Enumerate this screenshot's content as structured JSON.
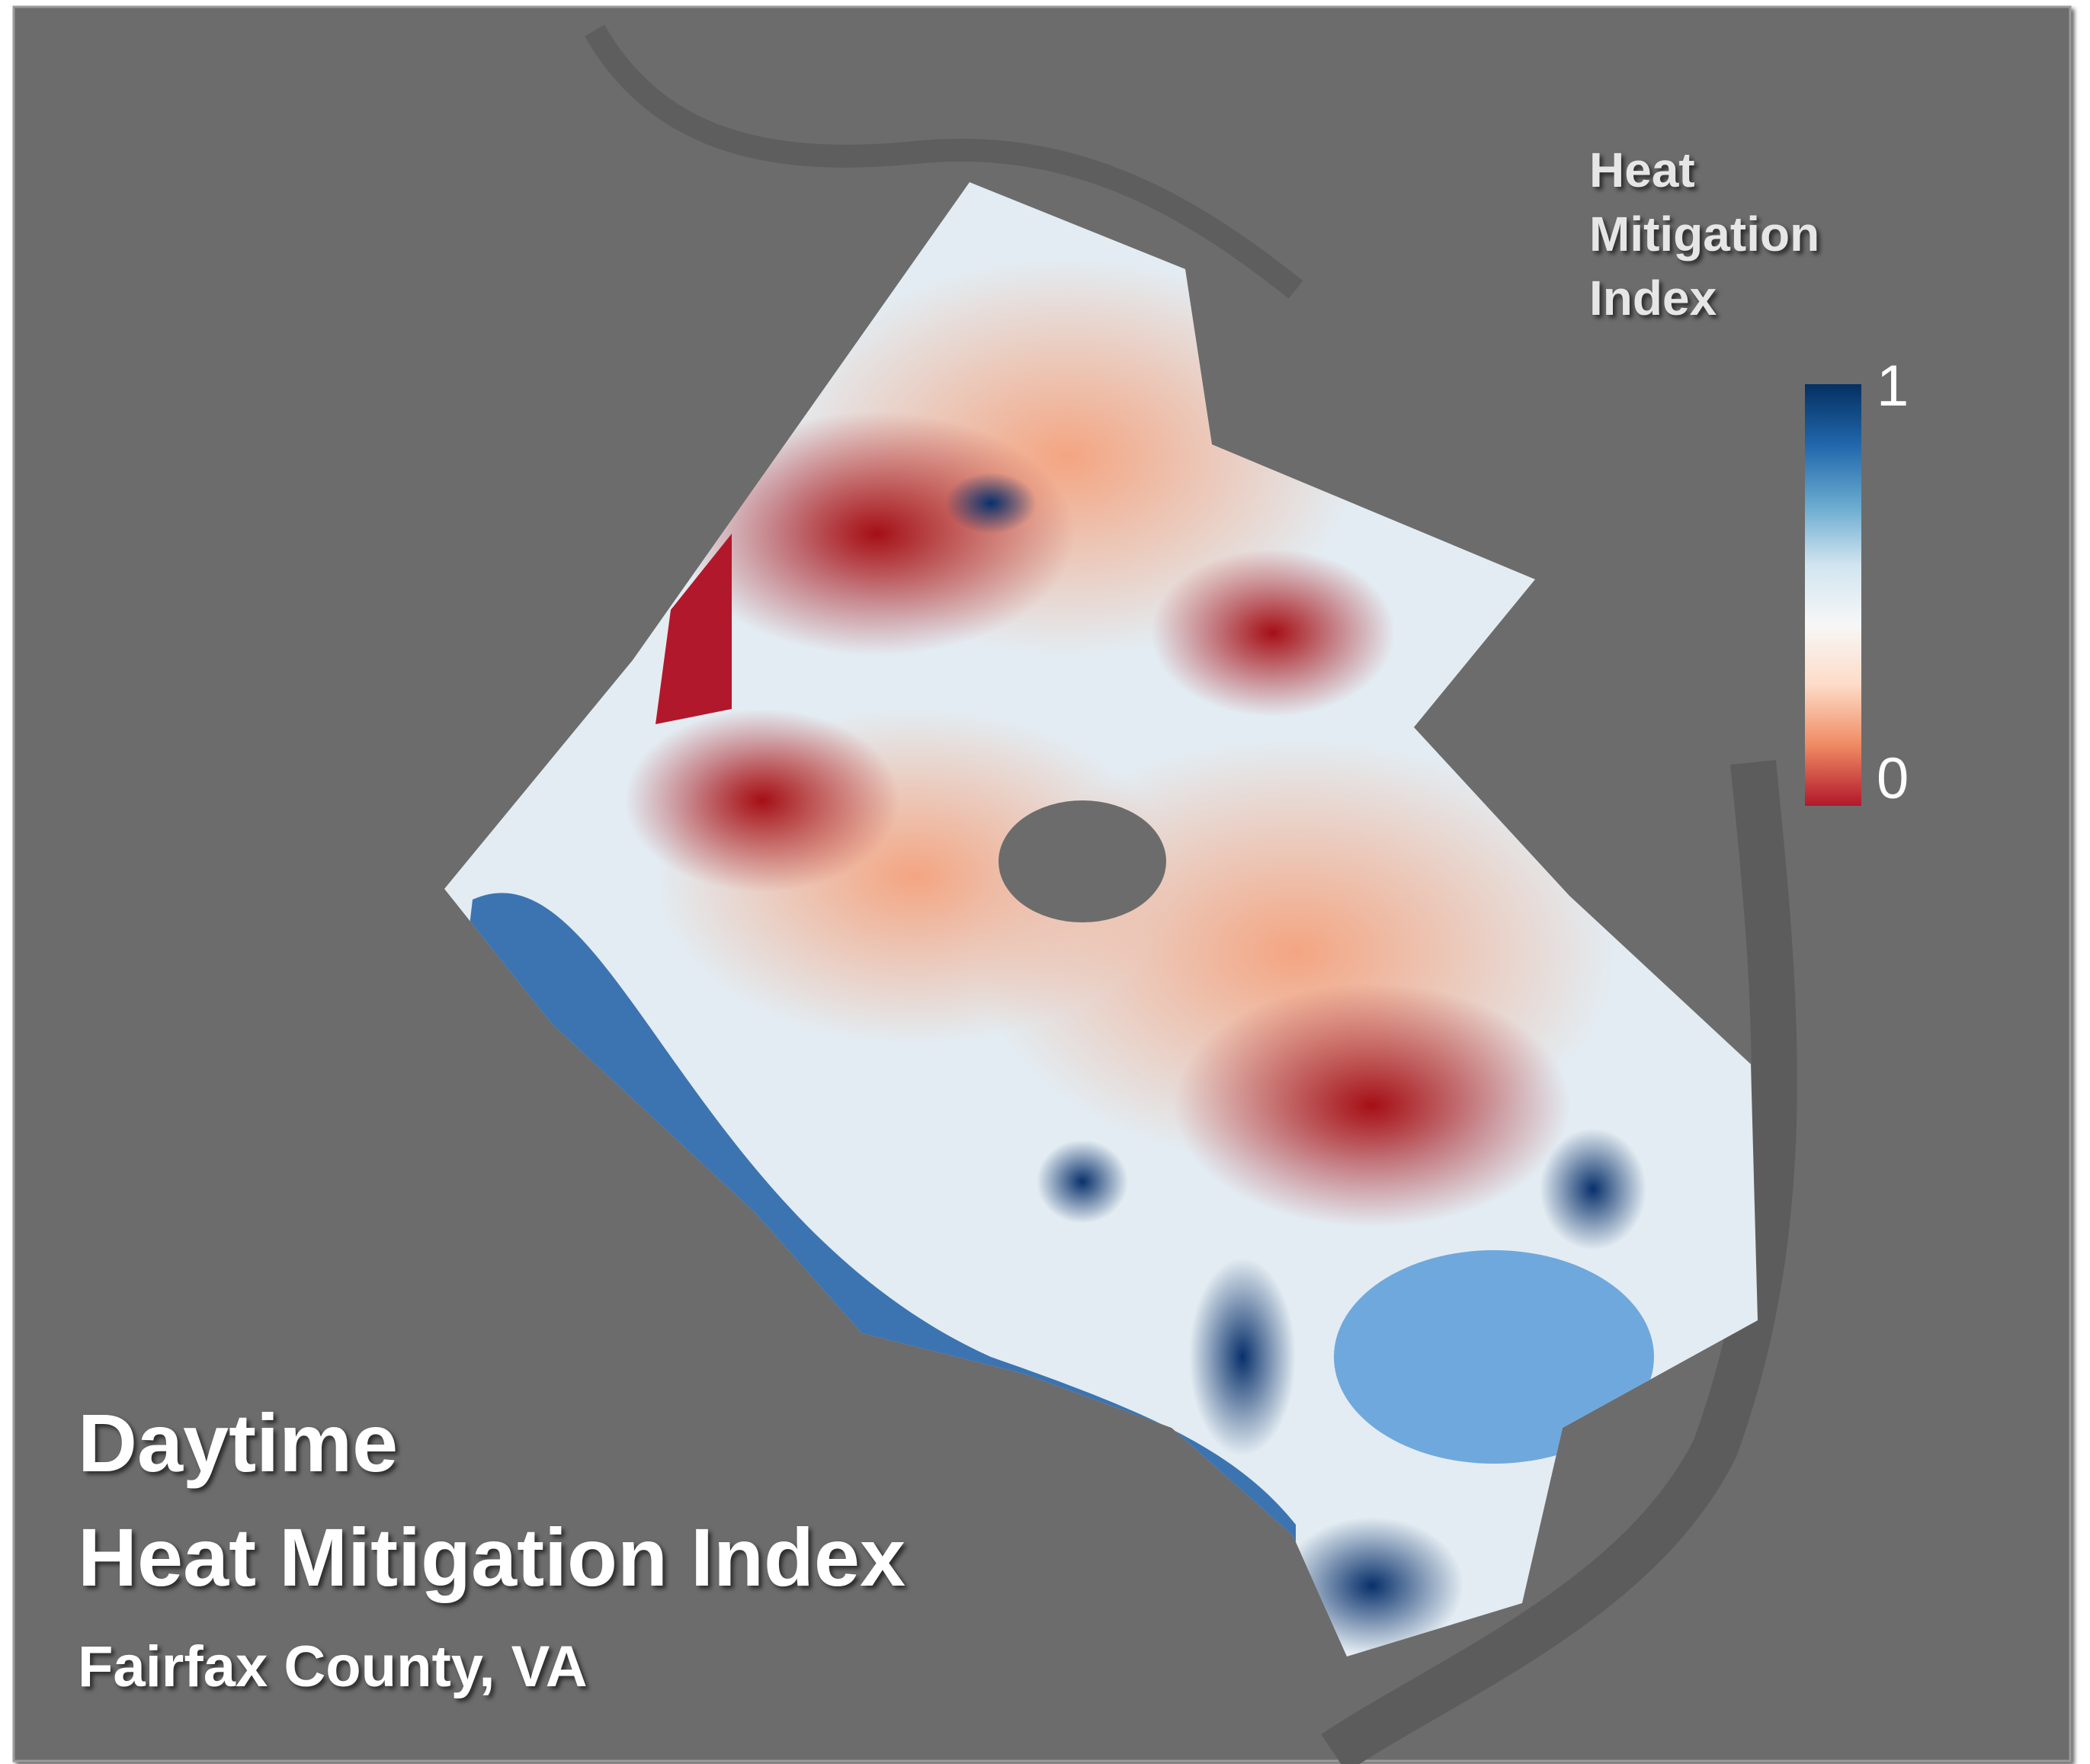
{
  "map": {
    "title": "Daytime",
    "subtitle": "Heat Mitigation Index",
    "location": "Fairfax County, VA",
    "legend": {
      "title": "Heat Mitigation Index",
      "ticks": [
        1,
        0
      ],
      "colors": [
        "#b2182b",
        "#ef8a62",
        "#fddbc7",
        "#f7f7f7",
        "#d1e5f0",
        "#67a9cf",
        "#2166ac",
        "#053061"
      ]
    }
  }
}
